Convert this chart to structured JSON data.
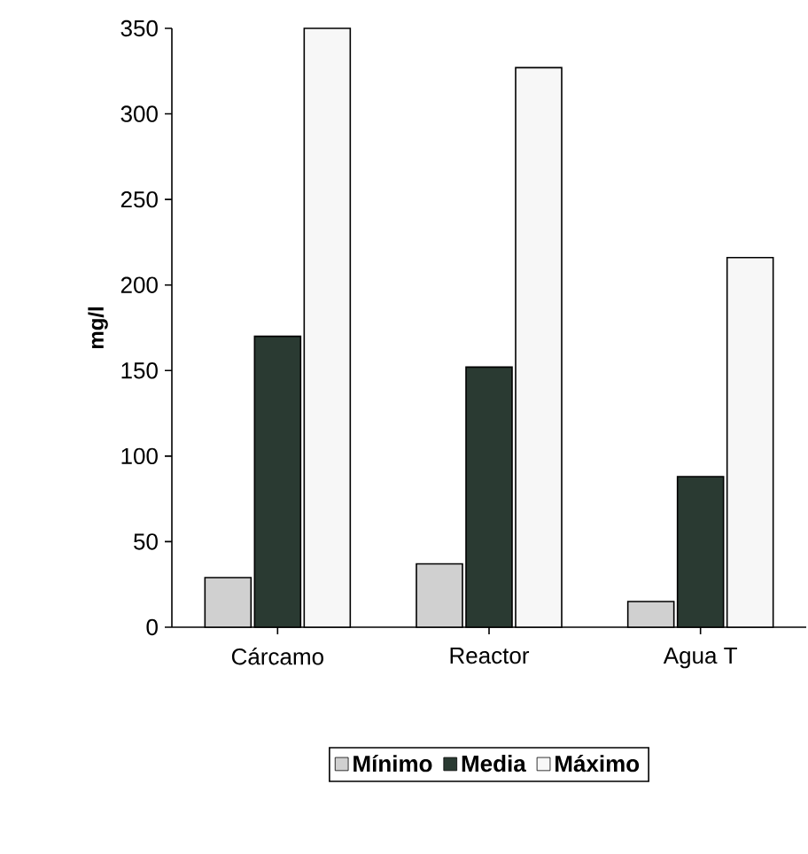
{
  "chart_data": {
    "type": "bar",
    "ylabel": "mg/l",
    "categories": [
      "Cárcamo",
      "Reactor",
      "Agua T"
    ],
    "series": [
      {
        "name": "Mínimo",
        "color": "#d0d0d0",
        "values": [
          29,
          37,
          15
        ]
      },
      {
        "name": "Media",
        "color": "#2a3a32",
        "values": [
          170,
          152,
          88
        ]
      },
      {
        "name": "Máximo",
        "color": "#f7f7f7",
        "values": [
          350,
          327,
          216
        ]
      }
    ],
    "ylim": [
      0,
      350
    ],
    "yticks": [
      0,
      50,
      100,
      150,
      200,
      250,
      300,
      350
    ],
    "legend": "bottom"
  }
}
